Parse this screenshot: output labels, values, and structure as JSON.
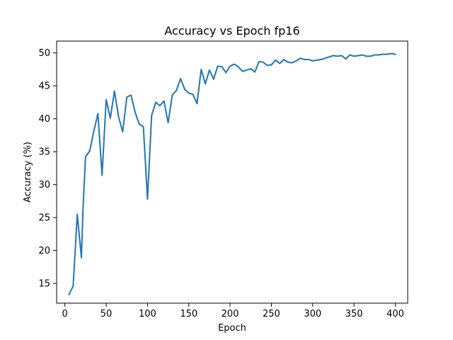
{
  "chart_data": {
    "type": "line",
    "title": "Accuracy vs Epoch fp16",
    "xlabel": "Epoch",
    "ylabel": "Accuracy (%)",
    "xlim": [
      -10,
      415
    ],
    "ylim": [
      12.0,
      51.8
    ],
    "xticks": [
      0,
      50,
      100,
      150,
      200,
      250,
      300,
      350,
      400
    ],
    "yticks": [
      15,
      20,
      25,
      30,
      35,
      40,
      45,
      50
    ],
    "grid": false,
    "legend": "none",
    "series": [
      {
        "color": "#1f77b4",
        "x": [
          5,
          10,
          15,
          20,
          22,
          25,
          30,
          35,
          40,
          45,
          50,
          55,
          60,
          65,
          70,
          75,
          80,
          85,
          90,
          95,
          100,
          105,
          110,
          115,
          120,
          125,
          130,
          135,
          140,
          145,
          150,
          155,
          160,
          165,
          170,
          175,
          180,
          185,
          190,
          195,
          200,
          205,
          210,
          215,
          220,
          225,
          230,
          235,
          240,
          245,
          250,
          255,
          260,
          265,
          270,
          275,
          280,
          285,
          290,
          295,
          300,
          305,
          310,
          315,
          320,
          325,
          330,
          335,
          340,
          345,
          350,
          355,
          360,
          365,
          370,
          375,
          380,
          385,
          390,
          395,
          400
        ],
        "y": [
          13.3,
          14.6,
          25.5,
          18.9,
          26.5,
          34.2,
          35.1,
          38.1,
          40.8,
          31.4,
          42.9,
          40.1,
          44.2,
          40.3,
          38.0,
          43.3,
          43.6,
          41.0,
          39.2,
          38.8,
          27.8,
          40.5,
          42.5,
          42.0,
          42.7,
          39.4,
          43.6,
          44.3,
          46.1,
          44.5,
          43.9,
          43.7,
          42.3,
          47.5,
          45.3,
          47.4,
          46.0,
          48.0,
          47.9,
          47.0,
          48.0,
          48.3,
          47.9,
          47.2,
          47.4,
          47.6,
          47.1,
          48.7,
          48.6,
          48.1,
          48.2,
          48.9,
          48.4,
          49.0,
          48.6,
          48.5,
          48.8,
          49.2,
          49.0,
          49.0,
          48.8,
          48.9,
          49.0,
          49.2,
          49.4,
          49.6,
          49.5,
          49.6,
          49.1,
          49.7,
          49.5,
          49.6,
          49.7,
          49.5,
          49.5,
          49.7,
          49.7,
          49.8,
          49.8,
          49.9,
          49.8
        ]
      }
    ]
  }
}
